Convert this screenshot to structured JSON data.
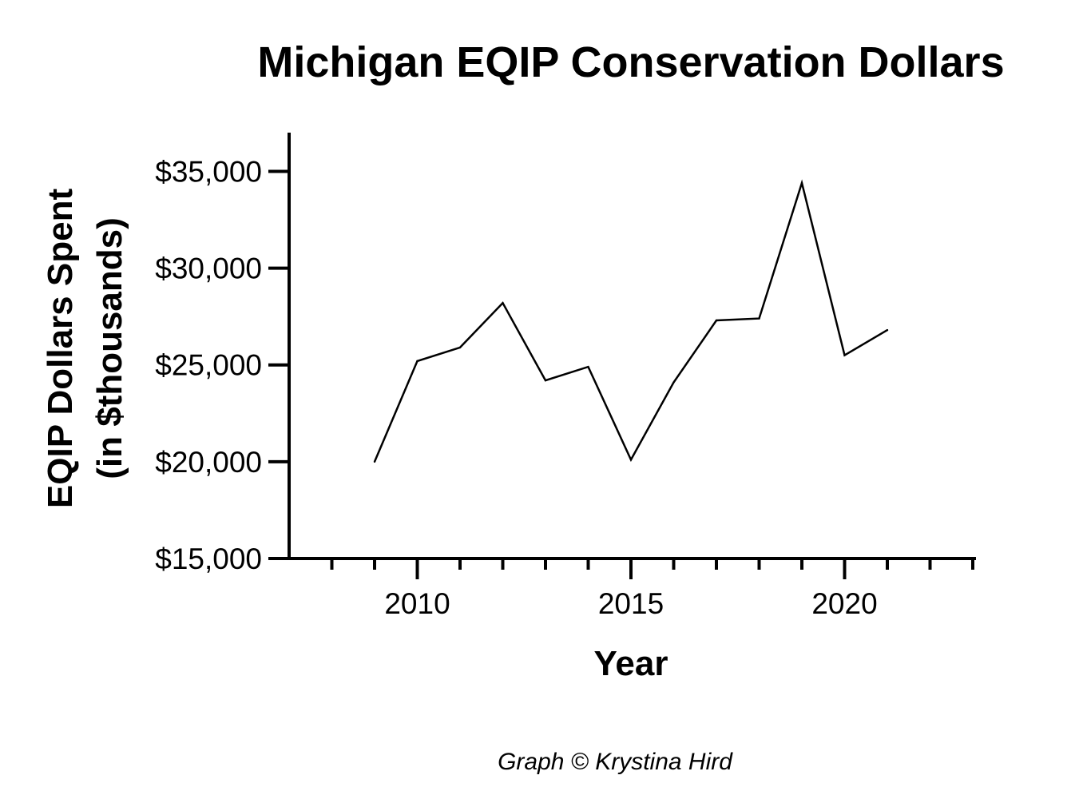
{
  "chart_data": {
    "type": "line",
    "title": "Michigan EQIP Conservation Dollars",
    "xlabel": "Year",
    "ylabel_lines": [
      "EQIP Dollars Spent",
      "(in $thousands)"
    ],
    "xlim": [
      2007,
      2023
    ],
    "ylim": [
      15000,
      37000
    ],
    "x_ticks_major": [
      2010,
      2015,
      2020
    ],
    "x_tick_labels": [
      "2010",
      "2015",
      "2020"
    ],
    "y_ticks": [
      15000,
      20000,
      25000,
      30000,
      35000
    ],
    "y_tick_labels": [
      "$15,000",
      "$20,000",
      "$25,000",
      "$30,000",
      "$35,000"
    ],
    "grid": false,
    "line_color": "#000000",
    "series": [
      {
        "x": [
          2009,
          2010,
          2011,
          2012,
          2013,
          2014,
          2015,
          2016,
          2017,
          2018,
          2019,
          2020,
          2021
        ],
        "values": [
          20000,
          25200,
          25900,
          28200,
          24200,
          24900,
          20100,
          24100,
          27300,
          27400,
          34400,
          25500,
          26800
        ]
      }
    ]
  },
  "credit": "Graph © Krystina Hird"
}
